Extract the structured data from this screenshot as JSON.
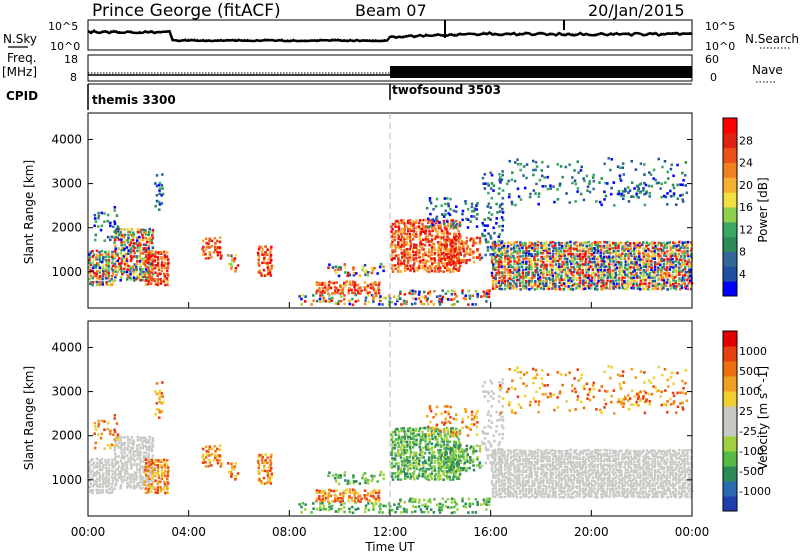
{
  "header": {
    "station": "Prince George (fitACF)",
    "beam": "Beam 07",
    "date": "20/Jan/2015"
  },
  "left_labels": {
    "nsky": "N.Sky",
    "freq": "Freq.",
    "mhz": "[MHz]",
    "cpid": "CPID"
  },
  "right_labels": {
    "nsearch": "N.Search",
    "nave": "Nave"
  },
  "noise_axis": {
    "left_ticks": [
      "10^5",
      "10^0"
    ],
    "right_ticks": [
      "10^5",
      "10^0"
    ]
  },
  "freq_axis": {
    "left_ticks": [
      "18",
      "8"
    ],
    "right_ticks": [
      "60",
      "0"
    ]
  },
  "cpid_segments": [
    {
      "name": "themis 3300",
      "start_hour": 0
    },
    {
      "name": "twofsound 3503",
      "start_hour": 12
    }
  ],
  "chart_data": [
    {
      "type": "heatmap",
      "ylabel": "Slant Range [km]",
      "x_range_hours": [
        0,
        24
      ],
      "ylim": [
        180,
        4600
      ],
      "yticks": [
        1000,
        2000,
        3000,
        4000
      ],
      "colorbar": {
        "label": "Power [dB]",
        "ticks": [
          "28",
          "24",
          "20",
          "16",
          "12",
          "8",
          "4"
        ],
        "colors": [
          "#0000ff",
          "#1f4fa0",
          "#336699",
          "#2f8a5a",
          "#3aa860",
          "#8fd14f",
          "#f0e040",
          "#f5b030",
          "#f08020",
          "#ec5018",
          "#e02010",
          "#ff0000"
        ]
      }
    },
    {
      "type": "heatmap",
      "ylabel": "Slant Range [km]",
      "xlabel": "Time UT",
      "x_range_hours": [
        0,
        24
      ],
      "ylim": [
        180,
        4600
      ],
      "yticks": [
        1000,
        2000,
        3000,
        4000
      ],
      "xticks": [
        "00:00",
        "04:00",
        "08:00",
        "12:00",
        "16:00",
        "20:00",
        "00:00"
      ],
      "colorbar": {
        "label": "Velocity [m s^-1]",
        "ticks": [
          "1000",
          "500",
          "100",
          "25",
          "-25",
          "-100",
          "-500",
          "-1000"
        ],
        "colors": [
          "#1f3fb0",
          "#2a6ab0",
          "#2f8a5a",
          "#55bb44",
          "#a0d040",
          "#c8c8c4",
          "#c8c8c4",
          "#f0d030",
          "#f0a020",
          "#ec7010",
          "#e84010",
          "#e00000"
        ]
      }
    }
  ]
}
